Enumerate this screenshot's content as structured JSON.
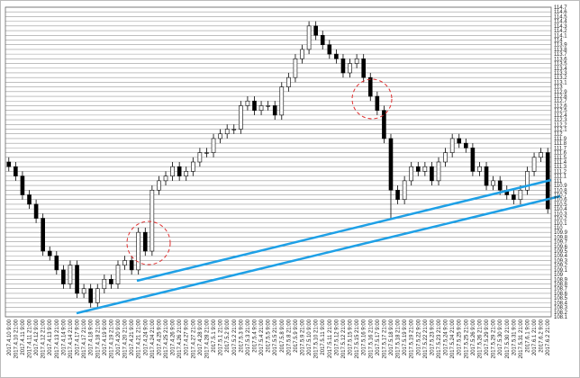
{
  "chart_data": {
    "type": "candlestick",
    "categories": [
      "2017.4.10 9:00",
      "2017.4.10 21:00",
      "2017.4.11 9:00",
      "2017.4.11 21:00",
      "2017.4.12 9:00",
      "2017.4.12 21:00",
      "2017.4.13 9:00",
      "2017.4.13 21:00",
      "2017.4.14 9:00",
      "2017.4.14 21:00",
      "2017.4.17 9:00",
      "2017.4.17 21:00",
      "2017.4.18 9:00",
      "2017.4.18 21:00",
      "2017.4.19 9:00",
      "2017.4.19 21:00",
      "2017.4.20 9:00",
      "2017.4.20 21:00",
      "2017.4.21 9:00",
      "2017.4.21 21:00",
      "2017.4.24 9:00",
      "2017.4.24 21:00",
      "2017.4.25 9:00",
      "2017.4.25 21:00",
      "2017.4.26 9:00",
      "2017.4.26 21:00",
      "2017.4.27 9:00",
      "2017.4.27 21:00",
      "2017.4.28 9:00",
      "2017.4.28 21:00",
      "2017.5.1 9:00",
      "2017.5.1 21:00",
      "2017.5.2 9:00",
      "2017.5.2 21:00",
      "2017.5.3 9:00",
      "2017.5.3 21:00",
      "2017.5.4 9:00",
      "2017.5.4 21:00",
      "2017.5.5 9:00",
      "2017.5.5 21:00",
      "2017.5.8 9:00",
      "2017.5.8 21:00",
      "2017.5.9 9:00",
      "2017.5.9 21:00",
      "2017.5.10 9:00",
      "2017.5.10 21:00",
      "2017.5.11 9:00",
      "2017.5.11 21:00",
      "2017.5.12 9:00",
      "2017.5.12 21:00",
      "2017.5.15 9:00",
      "2017.5.15 21:00",
      "2017.5.16 9:00",
      "2017.5.16 21:00",
      "2017.5.17 9:00",
      "2017.5.17 21:00",
      "2017.5.18 9:00",
      "2017.5.18 21:00",
      "2017.5.19 9:00",
      "2017.5.19 21:00",
      "2017.5.22 9:00",
      "2017.5.22 21:00",
      "2017.5.23 9:00",
      "2017.5.23 21:00",
      "2017.5.24 9:00",
      "2017.5.24 21:00",
      "2017.5.25 9:00",
      "2017.5.25 21:00",
      "2017.5.26 9:00",
      "2017.5.26 21:00",
      "2017.5.29 9:00",
      "2017.5.29 21:00",
      "2017.5.30 9:00",
      "2017.5.30 21:00",
      "2017.5.31 9:00",
      "2017.5.31 21:00",
      "2017.6.1 9:00",
      "2017.6.1 21:00",
      "2017.6.2 9:00",
      "2017.6.2 21:00"
    ],
    "open": [
      111.4,
      111.3,
      111.1,
      110.7,
      110.5,
      110.2,
      109.5,
      109.4,
      109.1,
      108.8,
      109.2,
      108.6,
      108.7,
      108.4,
      108.7,
      108.9,
      108.8,
      109.2,
      109.3,
      109.1,
      109.9,
      109.5,
      110.8,
      111.0,
      111.1,
      111.3,
      111.1,
      111.2,
      111.4,
      111.6,
      111.6,
      111.9,
      112.0,
      112.1,
      112.1,
      112.6,
      112.7,
      112.5,
      112.6,
      112.6,
      112.4,
      113.0,
      113.2,
      113.6,
      113.8,
      114.3,
      114.1,
      113.9,
      113.7,
      113.6,
      113.3,
      113.5,
      113.6,
      113.2,
      112.8,
      112.5,
      111.9,
      110.8,
      110.6,
      111.0,
      111.3,
      111.2,
      111.3,
      111.0,
      111.4,
      111.6,
      111.9,
      111.8,
      111.7,
      111.2,
      111.3,
      110.9,
      111.0,
      110.8,
      110.7,
      110.6,
      110.8,
      111.2,
      111.5,
      111.6
    ],
    "high": [
      111.5,
      111.4,
      111.2,
      110.8,
      110.6,
      110.3,
      109.6,
      109.5,
      109.2,
      109.3,
      109.3,
      108.8,
      108.8,
      108.8,
      109.0,
      109.0,
      109.3,
      109.4,
      109.4,
      110.0,
      110.0,
      110.9,
      111.1,
      111.2,
      111.4,
      111.4,
      111.3,
      111.5,
      111.7,
      111.7,
      112.0,
      112.1,
      112.2,
      112.2,
      112.7,
      112.8,
      112.8,
      112.7,
      112.7,
      112.7,
      113.1,
      113.3,
      113.7,
      113.9,
      114.4,
      114.4,
      114.2,
      114.0,
      113.8,
      113.7,
      113.6,
      113.7,
      113.7,
      113.3,
      112.9,
      112.6,
      112.0,
      110.9,
      111.1,
      111.4,
      111.4,
      111.4,
      111.4,
      111.5,
      111.7,
      112.0,
      112.0,
      111.9,
      111.8,
      111.4,
      111.4,
      111.1,
      111.1,
      110.9,
      110.8,
      110.9,
      111.3,
      111.6,
      111.7,
      111.7
    ],
    "low": [
      111.2,
      111.0,
      110.6,
      110.4,
      110.1,
      109.4,
      109.3,
      109.0,
      108.7,
      108.7,
      108.5,
      108.5,
      108.3,
      108.3,
      108.6,
      108.7,
      108.7,
      109.1,
      109.0,
      109.0,
      109.4,
      109.4,
      110.7,
      110.9,
      111.0,
      111.0,
      111.0,
      111.1,
      111.3,
      111.5,
      111.5,
      111.8,
      111.9,
      112.0,
      112.0,
      112.5,
      112.4,
      112.4,
      112.5,
      112.3,
      112.3,
      112.9,
      113.1,
      113.5,
      113.7,
      114.0,
      113.8,
      113.6,
      113.5,
      113.2,
      113.2,
      113.4,
      113.1,
      112.7,
      112.4,
      111.8,
      110.2,
      110.5,
      110.5,
      110.9,
      111.1,
      111.1,
      110.9,
      110.9,
      111.3,
      111.5,
      111.7,
      111.6,
      111.1,
      111.1,
      110.8,
      110.8,
      110.7,
      110.6,
      110.5,
      110.5,
      110.7,
      111.1,
      111.4,
      110.3
    ],
    "close": [
      111.3,
      111.1,
      110.7,
      110.5,
      110.2,
      109.5,
      109.4,
      109.1,
      108.8,
      109.2,
      108.6,
      108.7,
      108.4,
      108.7,
      108.9,
      108.8,
      109.2,
      109.3,
      109.1,
      109.9,
      109.5,
      110.8,
      111.0,
      111.1,
      111.3,
      111.1,
      111.2,
      111.4,
      111.6,
      111.6,
      111.9,
      112.0,
      112.1,
      112.1,
      112.6,
      112.7,
      112.5,
      112.6,
      112.6,
      112.4,
      113.0,
      113.2,
      113.6,
      113.8,
      114.3,
      114.1,
      113.9,
      113.7,
      113.6,
      113.3,
      113.5,
      113.6,
      113.2,
      112.8,
      112.5,
      111.9,
      110.8,
      110.6,
      111.0,
      111.3,
      111.2,
      111.3,
      111.0,
      111.4,
      111.6,
      111.9,
      111.8,
      111.7,
      111.2,
      111.3,
      110.9,
      111.0,
      110.8,
      110.7,
      110.6,
      110.8,
      111.2,
      111.5,
      111.6,
      110.4
    ],
    "up_color": "#ffffff",
    "down_color": "#000000",
    "ylim": [
      108.1,
      114.7
    ],
    "yticks": [
      108.1,
      108.2,
      108.3,
      108.4,
      108.5,
      108.6,
      108.7,
      108.8,
      108.9,
      109,
      109.1,
      109.2,
      109.3,
      109.4,
      109.5,
      109.6,
      109.7,
      109.8,
      109.9,
      110,
      110.1,
      110.2,
      110.3,
      110.4,
      110.5,
      110.6,
      110.7,
      110.8,
      110.9,
      111,
      111.1,
      111.2,
      111.3,
      111.4,
      111.5,
      111.6,
      111.7,
      111.8,
      111.9,
      112,
      112.1,
      112.2,
      112.3,
      112.4,
      112.5,
      112.6,
      112.7,
      112.8,
      112.9,
      113,
      113.1,
      113.2,
      113.3,
      113.4,
      113.5,
      113.6,
      113.7,
      113.8,
      113.9,
      114,
      114.1,
      114.2,
      114.3,
      114.4,
      114.5,
      114.6,
      114.7
    ],
    "grid": true
  }
}
